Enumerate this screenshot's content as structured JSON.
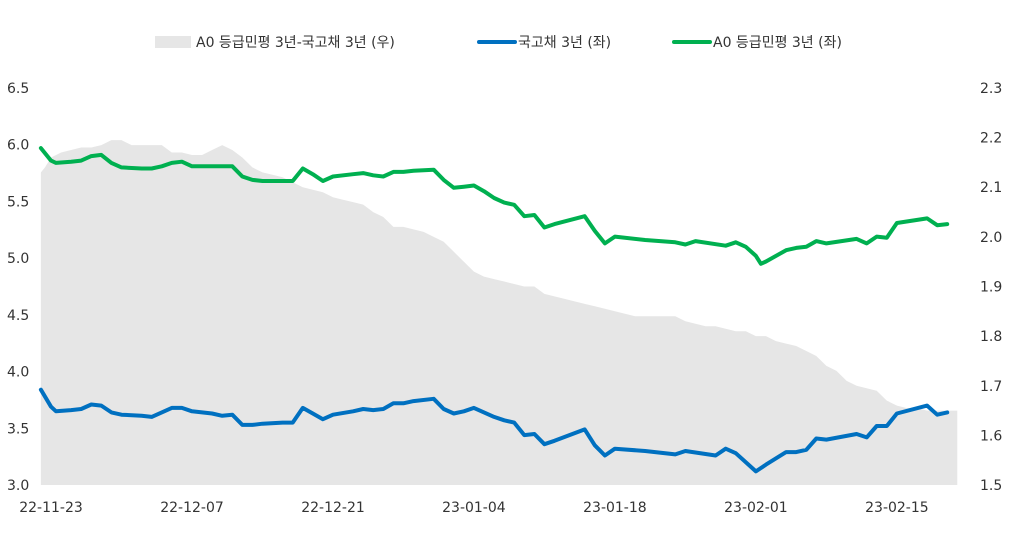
{
  "chart_data": {
    "type": "line",
    "title": "",
    "legend": {
      "placement": "top",
      "items": [
        {
          "label": "A0 등급민평 3년-국고채 3년 (우)",
          "style": "area",
          "color": "#e6e6e6"
        },
        {
          "label": "국고채 3년 (좌)",
          "style": "line",
          "color": "#0070c0"
        },
        {
          "label": "A0 등급민평 3년 (좌)",
          "style": "line",
          "color": "#00b050"
        }
      ]
    },
    "x_tick_labels": [
      "22-11-23",
      "22-12-07",
      "22-12-21",
      "23-01-04",
      "23-01-18",
      "23-02-01",
      "23-02-15"
    ],
    "x_tick_days": [
      0,
      14,
      28,
      42,
      56,
      70,
      84
    ],
    "y_left": {
      "min": 3.0,
      "max": 6.5,
      "ticks": [
        "3.0",
        "3.5",
        "4.0",
        "4.5",
        "5.0",
        "5.5",
        "6.0",
        "6.5"
      ]
    },
    "y_right": {
      "min": 1.5,
      "max": 2.3,
      "ticks": [
        "1.5",
        "1.6",
        "1.7",
        "1.8",
        "1.9",
        "2.0",
        "2.1",
        "2.2",
        "2.3"
      ]
    },
    "series": [
      {
        "name": "A0 등급민평 3년-국고채 3년 (우)",
        "axis": "right",
        "type": "area",
        "color": "#e6e6e6",
        "points": [
          [
            -1,
            2.13
          ],
          [
            -0.6,
            2.14
          ],
          [
            0,
            2.16
          ],
          [
            1,
            2.17
          ],
          [
            2,
            2.175
          ],
          [
            3,
            2.18
          ],
          [
            4,
            2.18
          ],
          [
            5,
            2.185
          ],
          [
            6,
            2.195
          ],
          [
            7,
            2.195
          ],
          [
            8,
            2.185
          ],
          [
            9,
            2.185
          ],
          [
            10,
            2.185
          ],
          [
            11,
            2.185
          ],
          [
            12,
            2.17
          ],
          [
            13,
            2.17
          ],
          [
            14,
            2.165
          ],
          [
            15,
            2.165
          ],
          [
            16,
            2.175
          ],
          [
            17,
            2.185
          ],
          [
            18,
            2.175
          ],
          [
            19,
            2.16
          ],
          [
            20,
            2.14
          ],
          [
            21,
            2.13
          ],
          [
            22,
            2.125
          ],
          [
            23,
            2.12
          ],
          [
            24,
            2.11
          ],
          [
            25,
            2.1
          ],
          [
            26,
            2.095
          ],
          [
            27,
            2.09
          ],
          [
            28,
            2.08
          ],
          [
            29,
            2.075
          ],
          [
            30,
            2.07
          ],
          [
            31,
            2.065
          ],
          [
            32,
            2.05
          ],
          [
            33,
            2.04
          ],
          [
            34,
            2.02
          ],
          [
            35,
            2.02
          ],
          [
            36,
            2.015
          ],
          [
            37,
            2.01
          ],
          [
            38,
            2.0
          ],
          [
            39,
            1.99
          ],
          [
            40,
            1.97
          ],
          [
            41,
            1.95
          ],
          [
            42,
            1.93
          ],
          [
            43,
            1.92
          ],
          [
            44,
            1.915
          ],
          [
            45,
            1.91
          ],
          [
            46,
            1.905
          ],
          [
            47,
            1.9
          ],
          [
            48,
            1.9
          ],
          [
            49,
            1.885
          ],
          [
            50,
            1.88
          ],
          [
            51,
            1.875
          ],
          [
            52,
            1.87
          ],
          [
            53,
            1.865
          ],
          [
            54,
            1.86
          ],
          [
            55,
            1.855
          ],
          [
            56,
            1.85
          ],
          [
            57,
            1.845
          ],
          [
            58,
            1.84
          ],
          [
            59,
            1.84
          ],
          [
            60,
            1.84
          ],
          [
            61,
            1.84
          ],
          [
            62,
            1.84
          ],
          [
            63,
            1.83
          ],
          [
            64,
            1.825
          ],
          [
            65,
            1.82
          ],
          [
            66,
            1.82
          ],
          [
            67,
            1.815
          ],
          [
            68,
            1.81
          ],
          [
            69,
            1.81
          ],
          [
            70,
            1.8
          ],
          [
            71,
            1.8
          ],
          [
            72,
            1.79
          ],
          [
            73,
            1.785
          ],
          [
            74,
            1.78
          ],
          [
            75,
            1.77
          ],
          [
            76,
            1.76
          ],
          [
            77,
            1.74
          ],
          [
            78,
            1.73
          ],
          [
            79,
            1.71
          ],
          [
            80,
            1.7
          ],
          [
            81,
            1.695
          ],
          [
            82,
            1.69
          ],
          [
            83,
            1.67
          ],
          [
            84,
            1.66
          ],
          [
            85,
            1.655
          ],
          [
            86,
            1.655
          ],
          [
            87,
            1.65
          ],
          [
            88,
            1.65
          ],
          [
            89,
            1.65
          ],
          [
            90,
            1.65
          ]
        ]
      },
      {
        "name": "국고채 3년 (좌)",
        "axis": "left",
        "type": "line",
        "color": "#0070c0",
        "points": [
          [
            -1,
            3.84
          ],
          [
            0,
            3.69
          ],
          [
            0.5,
            3.65
          ],
          [
            2,
            3.66
          ],
          [
            3,
            3.67
          ],
          [
            4,
            3.71
          ],
          [
            5,
            3.7
          ],
          [
            6,
            3.64
          ],
          [
            7,
            3.62
          ],
          [
            9,
            3.61
          ],
          [
            10,
            3.6
          ],
          [
            12,
            3.68
          ],
          [
            13,
            3.68
          ],
          [
            14,
            3.65
          ],
          [
            16,
            3.63
          ],
          [
            17,
            3.61
          ],
          [
            18,
            3.62
          ],
          [
            19,
            3.53
          ],
          [
            20,
            3.53
          ],
          [
            21,
            3.54
          ],
          [
            23,
            3.55
          ],
          [
            24,
            3.55
          ],
          [
            25,
            3.68
          ],
          [
            26,
            3.63
          ],
          [
            27,
            3.58
          ],
          [
            28,
            3.62
          ],
          [
            30,
            3.65
          ],
          [
            31,
            3.67
          ],
          [
            32,
            3.66
          ],
          [
            33,
            3.67
          ],
          [
            34,
            3.72
          ],
          [
            35,
            3.72
          ],
          [
            36,
            3.74
          ],
          [
            38,
            3.76
          ],
          [
            39,
            3.67
          ],
          [
            40,
            3.63
          ],
          [
            41,
            3.65
          ],
          [
            42,
            3.68
          ],
          [
            43,
            3.64
          ],
          [
            44,
            3.6
          ],
          [
            45,
            3.57
          ],
          [
            46,
            3.55
          ],
          [
            47,
            3.44
          ],
          [
            48,
            3.45
          ],
          [
            49,
            3.36
          ],
          [
            50,
            3.39
          ],
          [
            53,
            3.49
          ],
          [
            54,
            3.35
          ],
          [
            55,
            3.26
          ],
          [
            56,
            3.32
          ],
          [
            59,
            3.3
          ],
          [
            62,
            3.27
          ],
          [
            63,
            3.3
          ],
          [
            66,
            3.26
          ],
          [
            67,
            3.32
          ],
          [
            68,
            3.28
          ],
          [
            70,
            3.12
          ],
          [
            71,
            3.18
          ],
          [
            73,
            3.29
          ],
          [
            74,
            3.29
          ],
          [
            75,
            3.31
          ],
          [
            76,
            3.41
          ],
          [
            77,
            3.4
          ],
          [
            80,
            3.45
          ],
          [
            81,
            3.42
          ],
          [
            82,
            3.52
          ],
          [
            83,
            3.52
          ],
          [
            84,
            3.63
          ],
          [
            87,
            3.7
          ],
          [
            88,
            3.62
          ],
          [
            89,
            3.64
          ]
        ]
      },
      {
        "name": "A0 등급민평 3년 (좌)",
        "axis": "left",
        "type": "line",
        "color": "#00b050",
        "points": [
          [
            -1,
            5.97
          ],
          [
            0,
            5.86
          ],
          [
            0.5,
            5.84
          ],
          [
            2,
            5.85
          ],
          [
            3,
            5.86
          ],
          [
            4,
            5.9
          ],
          [
            5,
            5.91
          ],
          [
            6,
            5.84
          ],
          [
            7,
            5.8
          ],
          [
            9,
            5.79
          ],
          [
            10,
            5.79
          ],
          [
            11,
            5.81
          ],
          [
            12,
            5.84
          ],
          [
            13,
            5.85
          ],
          [
            14,
            5.81
          ],
          [
            18,
            5.81
          ],
          [
            19,
            5.72
          ],
          [
            20,
            5.69
          ],
          [
            21,
            5.68
          ],
          [
            23,
            5.68
          ],
          [
            24,
            5.68
          ],
          [
            25,
            5.79
          ],
          [
            26,
            5.74
          ],
          [
            27,
            5.68
          ],
          [
            28,
            5.72
          ],
          [
            30,
            5.74
          ],
          [
            31,
            5.75
          ],
          [
            32,
            5.73
          ],
          [
            33,
            5.72
          ],
          [
            34,
            5.76
          ],
          [
            35,
            5.76
          ],
          [
            36,
            5.77
          ],
          [
            38,
            5.78
          ],
          [
            39,
            5.69
          ],
          [
            40,
            5.62
          ],
          [
            41,
            5.63
          ],
          [
            42,
            5.64
          ],
          [
            43,
            5.59
          ],
          [
            44,
            5.53
          ],
          [
            45,
            5.49
          ],
          [
            46,
            5.47
          ],
          [
            47,
            5.37
          ],
          [
            48,
            5.38
          ],
          [
            49,
            5.27
          ],
          [
            50,
            5.3
          ],
          [
            53,
            5.37
          ],
          [
            54,
            5.24
          ],
          [
            55,
            5.13
          ],
          [
            56,
            5.19
          ],
          [
            59,
            5.16
          ],
          [
            62,
            5.14
          ],
          [
            63,
            5.12
          ],
          [
            64,
            5.15
          ],
          [
            67,
            5.11
          ],
          [
            68,
            5.14
          ],
          [
            69,
            5.1
          ],
          [
            70,
            5.02
          ],
          [
            70.5,
            4.95
          ],
          [
            71,
            4.97
          ],
          [
            73,
            5.07
          ],
          [
            74,
            5.09
          ],
          [
            75,
            5.1
          ],
          [
            76,
            5.15
          ],
          [
            77,
            5.13
          ],
          [
            80,
            5.17
          ],
          [
            81,
            5.13
          ],
          [
            82,
            5.19
          ],
          [
            83,
            5.18
          ],
          [
            84,
            5.31
          ],
          [
            87,
            5.35
          ],
          [
            88,
            5.29
          ],
          [
            89,
            5.3
          ]
        ]
      }
    ]
  }
}
